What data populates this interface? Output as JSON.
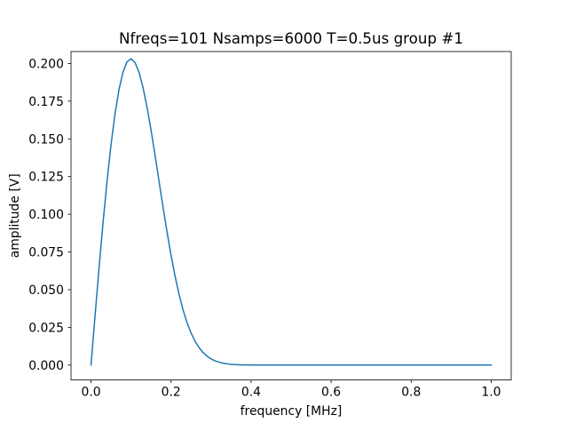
{
  "chart_data": {
    "type": "line",
    "title": "Nfreqs=101 Nsamps=6000 T=0.5us group #1",
    "xlabel": "frequency [MHz]",
    "ylabel": "amplitude [V]",
    "xlim": [
      -0.05,
      1.05
    ],
    "ylim": [
      -0.0099,
      0.2079
    ],
    "xticks": [
      0.0,
      0.2,
      0.4,
      0.6,
      0.8,
      1.0
    ],
    "xtick_labels": [
      "0.0",
      "0.2",
      "0.4",
      "0.6",
      "0.8",
      "1.0"
    ],
    "yticks": [
      0.0,
      0.025,
      0.05,
      0.075,
      0.1,
      0.125,
      0.15,
      0.175,
      0.2
    ],
    "ytick_labels": [
      "0.000",
      "0.025",
      "0.050",
      "0.075",
      "0.100",
      "0.125",
      "0.150",
      "0.175",
      "0.200"
    ],
    "grid": false,
    "series": [
      {
        "color": "#1f77b4",
        "x": [
          0.0,
          0.01,
          0.02,
          0.03,
          0.04,
          0.05,
          0.06,
          0.07,
          0.08,
          0.09,
          0.1,
          0.11,
          0.12,
          0.13,
          0.14,
          0.15,
          0.16,
          0.17,
          0.18,
          0.19,
          0.2,
          0.21,
          0.22,
          0.23,
          0.24,
          0.25,
          0.26,
          0.27,
          0.28,
          0.29,
          0.3,
          0.31,
          0.32,
          0.33,
          0.34,
          0.35,
          0.36,
          0.37,
          0.38,
          0.39,
          0.4,
          0.41,
          0.42,
          0.43,
          0.44,
          0.45,
          0.46,
          0.47,
          0.48,
          0.49,
          0.5,
          0.51,
          0.52,
          0.53,
          0.54,
          0.55,
          0.56,
          0.57,
          0.58,
          0.59,
          0.6,
          0.61,
          0.62,
          0.63,
          0.64,
          0.65,
          0.66,
          0.67,
          0.68,
          0.69,
          0.7,
          0.71,
          0.72,
          0.73,
          0.74,
          0.75,
          0.76,
          0.77,
          0.78,
          0.79,
          0.8,
          0.81,
          0.82,
          0.83,
          0.84,
          0.85,
          0.86,
          0.87,
          0.88,
          0.89,
          0.9,
          0.91,
          0.92,
          0.93,
          0.94,
          0.95,
          0.96,
          0.97,
          0.98,
          0.99,
          1.0
        ],
        "y": [
          0.0,
          0.0324,
          0.0641,
          0.0942,
          0.1218,
          0.1461,
          0.1666,
          0.1828,
          0.1943,
          0.2011,
          0.2031,
          0.2006,
          0.1941,
          0.184,
          0.171,
          0.1558,
          0.1392,
          0.1219,
          0.1047,
          0.0882,
          0.0728,
          0.059,
          0.0469,
          0.0366,
          0.0281,
          0.0213,
          0.0158,
          0.0116,
          0.0083,
          0.0059,
          0.0041,
          0.0028,
          0.0019,
          0.0012,
          0.0008,
          0.0005,
          0.0003,
          0.0002,
          0.0001,
          0.0001,
          0.0,
          0.0,
          0.0,
          0.0,
          0.0,
          0.0,
          0.0,
          0.0,
          0.0,
          0.0,
          0.0,
          0.0,
          0.0,
          0.0,
          0.0,
          0.0,
          0.0,
          0.0,
          0.0,
          0.0,
          0.0,
          0.0,
          0.0,
          0.0,
          0.0,
          0.0,
          0.0,
          0.0,
          0.0,
          0.0,
          0.0,
          0.0,
          0.0,
          0.0,
          0.0,
          0.0,
          0.0,
          0.0,
          0.0,
          0.0,
          0.0,
          0.0,
          0.0,
          0.0,
          0.0,
          0.0,
          0.0,
          0.0,
          0.0,
          0.0,
          0.0,
          0.0,
          0.0,
          0.0,
          0.0,
          0.0,
          0.0,
          0.0,
          0.0,
          0.0,
          0.0
        ]
      }
    ]
  }
}
